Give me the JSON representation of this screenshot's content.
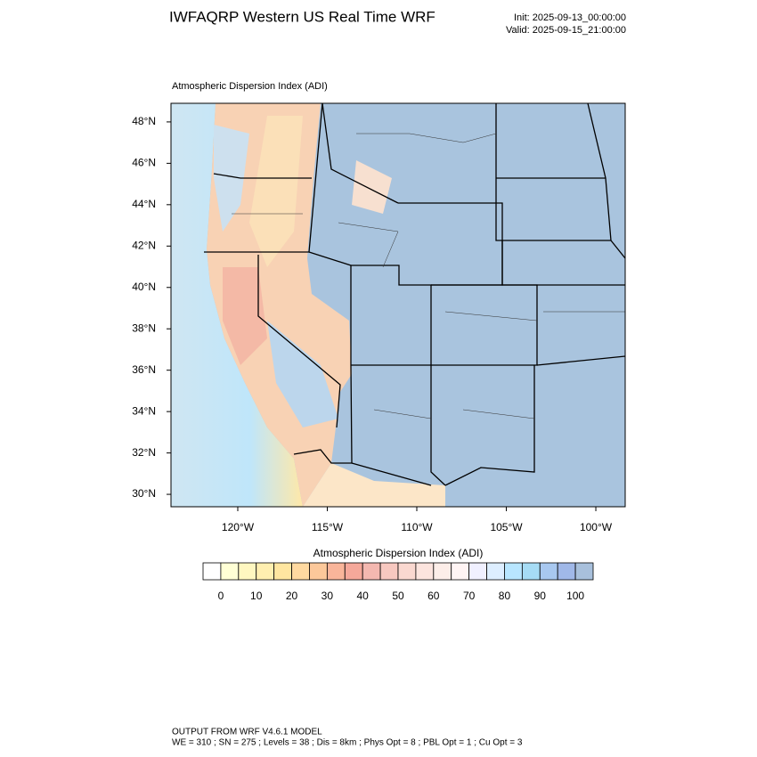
{
  "header": {
    "title": "IWFAQRP Western US Real Time WRF",
    "init": "Init: 2025-09-13_00:00:00",
    "valid": "Valid: 2025-09-15_21:00:00"
  },
  "map": {
    "title": "Atmospheric Dispersion Index   (ADI)",
    "xlim": [
      -123.73,
      -98.36
    ],
    "ylim": [
      29.4,
      48.9
    ],
    "xticks": [
      {
        "value": -120,
        "label": "120°W"
      },
      {
        "value": -115,
        "label": "115°W"
      },
      {
        "value": -110,
        "label": "110°W"
      },
      {
        "value": -105,
        "label": "105°W"
      },
      {
        "value": -100,
        "label": "100°W"
      }
    ],
    "yticks": [
      {
        "value": 30,
        "label": "30°N"
      },
      {
        "value": 32,
        "label": "32°N"
      },
      {
        "value": 34,
        "label": "34°N"
      },
      {
        "value": 36,
        "label": "36°N"
      },
      {
        "value": 38,
        "label": "38°N"
      },
      {
        "value": 40,
        "label": "40°N"
      },
      {
        "value": 42,
        "label": "42°N"
      },
      {
        "value": 44,
        "label": "44°N"
      },
      {
        "value": 46,
        "label": "46°N"
      },
      {
        "value": 48,
        "label": "48°N"
      }
    ]
  },
  "colorbar": {
    "title": "Atmospheric Dispersion Index  (ADI)",
    "lim": [
      -5,
      105
    ],
    "ticks": [
      0,
      10,
      20,
      30,
      40,
      50,
      60,
      70,
      80,
      90,
      100
    ],
    "colors": [
      "#ffffff",
      "#ffffd5",
      "#fff7c0",
      "#ffefb0",
      "#ffe6a0",
      "#ffd9a0",
      "#fcc89a",
      "#f9b59a",
      "#f5a89a",
      "#f4b8b0",
      "#f7c8c0",
      "#fad8d0",
      "#fce4de",
      "#fdeee9",
      "#fff4f4",
      "#f0f0ff",
      "#ddeeff",
      "#b8e6ff",
      "#a6dcf5",
      "#a8c8f0",
      "#a0b8e8",
      "#a8c0dc"
    ]
  },
  "footer": {
    "line1": "OUTPUT FROM WRF V4.6.1 MODEL",
    "line2": "WE = 310 ; SN = 275 ; Levels = 38 ; Dis = 8km ; Phys Opt = 8 ; PBL Opt = 1 ; Cu Opt = 3"
  }
}
